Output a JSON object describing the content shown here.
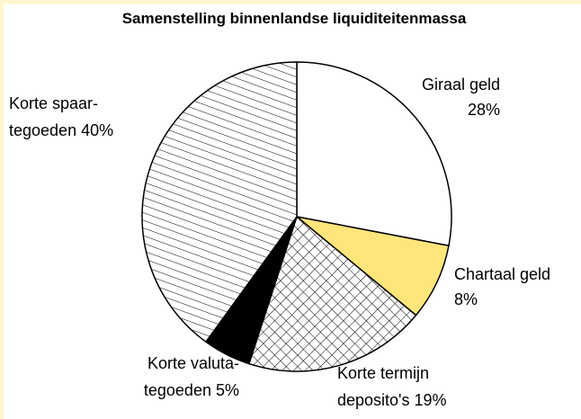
{
  "chart_data": {
    "type": "pie",
    "title": "Samenstelling binnenlandse liquiditeitenmassa",
    "categories": [
      "Giraal geld",
      "Chartaal geld",
      "Korte termijn\ndeposito's",
      "Korte valuta-\ntegoeden",
      "Korte spaar-\ntegoeden"
    ],
    "values": [
      28,
      8,
      19,
      5,
      40
    ],
    "value_labels": [
      "28%",
      "8%",
      "19%",
      "5%",
      "40%"
    ],
    "colors": [
      "#ffffff",
      "#ffe57a",
      "crosshatch",
      "#000000",
      "diagonal"
    ]
  }
}
